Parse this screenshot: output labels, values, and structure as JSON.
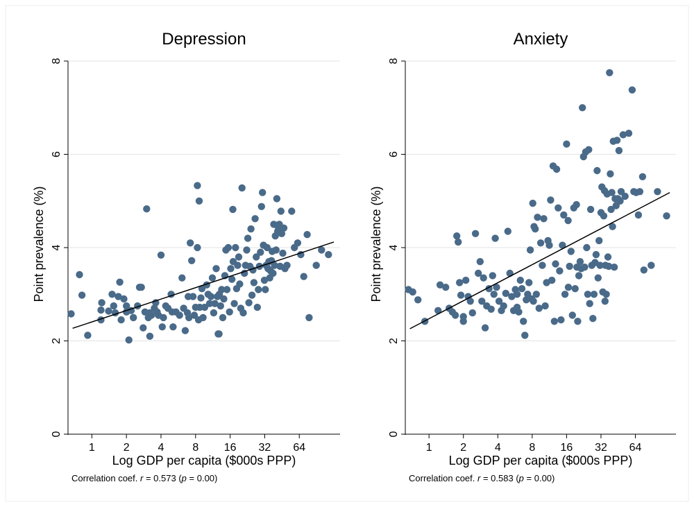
{
  "chart_data": [
    {
      "type": "scatter",
      "title": "Depression",
      "xlabel": "Log GDP per capita ($000s PPP)",
      "ylabel": "Point prevalence (%)",
      "x_scale": "log2",
      "xticks": [
        1,
        2,
        4,
        8,
        16,
        32,
        64
      ],
      "xlim": [
        0.62,
        145
      ],
      "ylim": [
        0,
        8
      ],
      "yticks": [
        0,
        2,
        4,
        6,
        8
      ],
      "grid": true,
      "point_color": "#4a6a89",
      "correlation": {
        "prefix": "Correlation coef.",
        "r_label": "r",
        "r": "0.573",
        "p_label": "p",
        "p": "0.00"
      },
      "fit_line": {
        "x": [
          0.68,
          128
        ],
        "y": [
          2.27,
          4.12
        ]
      },
      "points": [
        [
          0.66,
          2.58
        ],
        [
          0.78,
          3.42
        ],
        [
          0.82,
          2.98
        ],
        [
          0.92,
          2.12
        ],
        [
          1.2,
          2.45
        ],
        [
          1.2,
          2.66
        ],
        [
          1.22,
          2.82
        ],
        [
          1.4,
          2.64
        ],
        [
          1.5,
          3.0
        ],
        [
          1.55,
          2.75
        ],
        [
          1.6,
          2.6
        ],
        [
          1.7,
          2.95
        ],
        [
          1.75,
          3.26
        ],
        [
          1.8,
          2.45
        ],
        [
          1.9,
          2.9
        ],
        [
          2.0,
          2.62
        ],
        [
          2.1,
          2.02
        ],
        [
          2.2,
          2.65
        ],
        [
          2.3,
          2.5
        ],
        [
          2.5,
          2.75
        ],
        [
          2.6,
          3.15
        ],
        [
          2.7,
          3.15
        ],
        [
          2.8,
          2.28
        ],
        [
          2.9,
          2.62
        ],
        [
          3.0,
          4.83
        ],
        [
          3.1,
          2.5
        ],
        [
          3.2,
          2.1
        ],
        [
          3.3,
          2.55
        ],
        [
          3.5,
          2.7
        ],
        [
          3.6,
          2.82
        ],
        [
          3.7,
          2.62
        ],
        [
          3.8,
          2.55
        ],
        [
          4.0,
          3.84
        ],
        [
          4.1,
          2.3
        ],
        [
          4.2,
          2.5
        ],
        [
          4.4,
          2.75
        ],
        [
          4.6,
          2.7
        ],
        [
          4.9,
          3.0
        ],
        [
          5.1,
          2.3
        ],
        [
          5.4,
          2.62
        ],
        [
          5.8,
          2.55
        ],
        [
          6.1,
          3.35
        ],
        [
          6.3,
          2.7
        ],
        [
          6.5,
          2.22
        ],
        [
          6.8,
          2.6
        ],
        [
          7.0,
          2.5
        ],
        [
          7.2,
          4.1
        ],
        [
          7.4,
          3.72
        ],
        [
          7.6,
          2.95
        ],
        [
          7.8,
          2.55
        ],
        [
          8.0,
          2.72
        ],
        [
          8.3,
          4.0
        ],
        [
          8.5,
          2.45
        ],
        [
          8.7,
          2.72
        ],
        [
          8.9,
          2.92
        ],
        [
          9.1,
          3.12
        ],
        [
          9.3,
          2.5
        ],
        [
          9.6,
          2.72
        ],
        [
          10.0,
          3.2
        ],
        [
          10.3,
          3.0
        ],
        [
          10.6,
          2.8
        ],
        [
          10.9,
          2.95
        ],
        [
          11.2,
          3.35
        ],
        [
          11.5,
          2.6
        ],
        [
          11.8,
          2.8
        ],
        [
          12.1,
          3.55
        ],
        [
          12.4,
          2.95
        ],
        [
          12.6,
          2.15
        ],
        [
          12.9,
          3.0
        ],
        [
          13.2,
          2.75
        ],
        [
          13.5,
          3.1
        ],
        [
          13.8,
          2.5
        ],
        [
          14.1,
          2.9
        ],
        [
          14.4,
          3.4
        ],
        [
          14.7,
          3.95
        ],
        [
          15.0,
          3.1
        ],
        [
          15.4,
          4.0
        ],
        [
          15.8,
          2.62
        ],
        [
          16.2,
          3.55
        ],
        [
          16.6,
          3.32
        ],
        [
          17.0,
          3.7
        ],
        [
          17.4,
          2.8
        ],
        [
          17.8,
          4.0
        ],
        [
          18.2,
          3.12
        ],
        [
          18.6,
          3.62
        ],
        [
          19.0,
          3.8
        ],
        [
          19.4,
          3.22
        ],
        [
          19.8,
          2.7
        ],
        [
          20.3,
          5.28
        ],
        [
          20.8,
          2.6
        ],
        [
          21.3,
          3.45
        ],
        [
          21.8,
          3.62
        ],
        [
          22.3,
          3.95
        ],
        [
          22.8,
          4.2
        ],
        [
          23.3,
          2.82
        ],
        [
          23.8,
          3.6
        ],
        [
          24.3,
          4.4
        ],
        [
          24.8,
          2.98
        ],
        [
          25.3,
          3.52
        ],
        [
          25.8,
          3.25
        ],
        [
          26.4,
          4.62
        ],
        [
          27.0,
          3.8
        ],
        [
          27.6,
          2.72
        ],
        [
          28.2,
          3.1
        ],
        [
          28.8,
          3.6
        ],
        [
          29.4,
          3.9
        ],
        [
          30.0,
          4.88
        ],
        [
          30.6,
          5.18
        ],
        [
          31.2,
          4.05
        ],
        [
          31.8,
          3.3
        ],
        [
          32.4,
          3.1
        ],
        [
          33.0,
          3.62
        ],
        [
          33.6,
          4.0
        ],
        [
          34.2,
          3.55
        ],
        [
          34.8,
          3.7
        ],
        [
          35.4,
          3.35
        ],
        [
          36.0,
          3.5
        ],
        [
          36.6,
          3.72
        ],
        [
          37.2,
          3.92
        ],
        [
          37.8,
          3.45
        ],
        [
          38.4,
          4.5
        ],
        [
          39.0,
          3.62
        ],
        [
          39.6,
          4.25
        ],
        [
          40.2,
          3.95
        ],
        [
          40.8,
          5.05
        ],
        [
          41.5,
          4.35
        ],
        [
          42.2,
          4.4
        ],
        [
          42.9,
          4.5
        ],
        [
          43.6,
          3.6
        ],
        [
          44.3,
          4.78
        ],
        [
          45.0,
          4.3
        ],
        [
          46.0,
          3.88
        ],
        [
          47.0,
          4.42
        ],
        [
          48.0,
          3.55
        ],
        [
          50.0,
          3.62
        ],
        [
          55.0,
          4.78
        ],
        [
          58.0,
          4.0
        ],
        [
          62.0,
          4.1
        ],
        [
          66.0,
          3.85
        ],
        [
          70.0,
          3.38
        ],
        [
          75.0,
          4.28
        ],
        [
          78.0,
          2.5
        ],
        [
          90.0,
          3.62
        ],
        [
          100.0,
          3.95
        ],
        [
          115.0,
          3.85
        ],
        [
          8.3,
          5.33
        ],
        [
          8.6,
          5.0
        ],
        [
          16.9,
          4.82
        ],
        [
          2.0,
          2.75
        ],
        [
          3.2,
          2.6
        ],
        [
          5.0,
          2.62
        ],
        [
          6.9,
          2.95
        ],
        [
          12.8,
          2.15
        ]
      ]
    },
    {
      "type": "scatter",
      "title": "Anxiety",
      "xlabel": "Log GDP per capita ($000s PPP)",
      "ylabel": "Point prevalence (%)",
      "x_scale": "log2",
      "xticks": [
        1,
        2,
        4,
        8,
        16,
        32,
        64
      ],
      "xlim": [
        0.62,
        145
      ],
      "ylim": [
        0,
        8
      ],
      "yticks": [
        0,
        2,
        4,
        6,
        8
      ],
      "grid": true,
      "point_color": "#4a6a89",
      "correlation": {
        "prefix": "Correlation coef.",
        "r_label": "r",
        "r": "0.583",
        "p_label": "p",
        "p": "0.00"
      },
      "fit_line": {
        "x": [
          0.68,
          128
        ],
        "y": [
          2.26,
          5.18
        ]
      },
      "points": [
        [
          0.66,
          3.1
        ],
        [
          0.72,
          3.05
        ],
        [
          0.8,
          2.88
        ],
        [
          0.92,
          2.42
        ],
        [
          1.2,
          2.65
        ],
        [
          1.25,
          3.2
        ],
        [
          1.4,
          3.15
        ],
        [
          1.5,
          2.7
        ],
        [
          1.6,
          2.62
        ],
        [
          1.7,
          2.55
        ],
        [
          1.75,
          4.25
        ],
        [
          1.8,
          4.12
        ],
        [
          1.85,
          3.25
        ],
        [
          1.9,
          2.98
        ],
        [
          2.0,
          2.52
        ],
        [
          2.1,
          3.3
        ],
        [
          2.2,
          2.95
        ],
        [
          2.3,
          2.85
        ],
        [
          2.4,
          2.6
        ],
        [
          2.55,
          4.3
        ],
        [
          2.7,
          3.45
        ],
        [
          2.8,
          3.7
        ],
        [
          2.9,
          2.85
        ],
        [
          3.0,
          3.35
        ],
        [
          3.1,
          2.28
        ],
        [
          3.2,
          2.75
        ],
        [
          3.35,
          3.12
        ],
        [
          3.5,
          2.68
        ],
        [
          3.7,
          3.0
        ],
        [
          3.8,
          4.2
        ],
        [
          3.9,
          3.15
        ],
        [
          4.1,
          2.85
        ],
        [
          4.3,
          2.65
        ],
        [
          4.5,
          2.75
        ],
        [
          4.7,
          3.02
        ],
        [
          4.9,
          4.35
        ],
        [
          5.1,
          3.45
        ],
        [
          5.3,
          2.95
        ],
        [
          5.5,
          2.65
        ],
        [
          5.7,
          3.1
        ],
        [
          5.9,
          2.72
        ],
        [
          6.1,
          2.62
        ],
        [
          6.3,
          3.3
        ],
        [
          6.5,
          3.12
        ],
        [
          6.7,
          2.42
        ],
        [
          6.9,
          2.12
        ],
        [
          7.1,
          2.88
        ],
        [
          7.3,
          3.0
        ],
        [
          7.5,
          3.25
        ],
        [
          7.7,
          3.95
        ],
        [
          7.9,
          2.9
        ],
        [
          8.1,
          4.95
        ],
        [
          8.3,
          4.45
        ],
        [
          8.5,
          4.4
        ],
        [
          8.7,
          3.0
        ],
        [
          8.9,
          4.65
        ],
        [
          9.2,
          2.7
        ],
        [
          9.5,
          4.1
        ],
        [
          9.8,
          3.62
        ],
        [
          10.1,
          4.62
        ],
        [
          10.4,
          2.75
        ],
        [
          10.7,
          3.25
        ],
        [
          11.0,
          4.15
        ],
        [
          11.3,
          4.05
        ],
        [
          11.6,
          5.02
        ],
        [
          11.9,
          3.3
        ],
        [
          12.2,
          5.75
        ],
        [
          12.5,
          2.42
        ],
        [
          12.8,
          3.65
        ],
        [
          13.1,
          5.68
        ],
        [
          13.5,
          4.85
        ],
        [
          13.9,
          3.5
        ],
        [
          14.3,
          2.45
        ],
        [
          14.7,
          4.05
        ],
        [
          15.1,
          4.7
        ],
        [
          15.5,
          3.0
        ],
        [
          16.0,
          6.22
        ],
        [
          16.5,
          4.58
        ],
        [
          17.0,
          3.6
        ],
        [
          17.5,
          3.92
        ],
        [
          18.0,
          2.55
        ],
        [
          18.5,
          4.85
        ],
        [
          19.0,
          3.12
        ],
        [
          19.5,
          4.92
        ],
        [
          20.0,
          2.42
        ],
        [
          20.5,
          3.4
        ],
        [
          21.0,
          3.7
        ],
        [
          21.5,
          3.55
        ],
        [
          22.0,
          7.0
        ],
        [
          22.5,
          5.95
        ],
        [
          23.0,
          3.58
        ],
        [
          23.5,
          6.05
        ],
        [
          24.0,
          4.0
        ],
        [
          24.5,
          3.0
        ],
        [
          25.0,
          6.1
        ],
        [
          25.5,
          2.8
        ],
        [
          26.0,
          4.82
        ],
        [
          26.6,
          3.62
        ],
        [
          27.2,
          2.48
        ],
        [
          27.8,
          3.0
        ],
        [
          28.4,
          3.68
        ],
        [
          29.0,
          3.85
        ],
        [
          29.6,
          5.65
        ],
        [
          30.2,
          3.35
        ],
        [
          30.8,
          4.15
        ],
        [
          31.4,
          3.62
        ],
        [
          32.0,
          4.75
        ],
        [
          32.6,
          5.3
        ],
        [
          33.2,
          3.05
        ],
        [
          33.8,
          4.68
        ],
        [
          34.4,
          5.22
        ],
        [
          35.0,
          3.62
        ],
        [
          35.6,
          3.0
        ],
        [
          36.2,
          5.15
        ],
        [
          36.8,
          3.8
        ],
        [
          37.4,
          3.6
        ],
        [
          38.0,
          7.75
        ],
        [
          38.6,
          5.58
        ],
        [
          39.2,
          4.82
        ],
        [
          39.8,
          5.18
        ],
        [
          40.4,
          4.45
        ],
        [
          41.0,
          6.28
        ],
        [
          41.8,
          3.58
        ],
        [
          42.6,
          5.05
        ],
        [
          43.4,
          4.9
        ],
        [
          44.2,
          6.3
        ],
        [
          45.0,
          5.05
        ],
        [
          46.0,
          6.08
        ],
        [
          47.0,
          5.0
        ],
        [
          48.0,
          5.2
        ],
        [
          50.0,
          6.42
        ],
        [
          52.0,
          5.1
        ],
        [
          56.0,
          6.45
        ],
        [
          60.0,
          7.38
        ],
        [
          62.0,
          5.2
        ],
        [
          65.0,
          5.18
        ],
        [
          68.0,
          4.7
        ],
        [
          70.0,
          5.2
        ],
        [
          74.0,
          5.52
        ],
        [
          76.0,
          3.52
        ],
        [
          88.0,
          3.62
        ],
        [
          100.0,
          5.2
        ],
        [
          120.0,
          4.68
        ],
        [
          2.0,
          2.42
        ],
        [
          3.6,
          3.4
        ],
        [
          5.9,
          3.0
        ],
        [
          8.2,
          2.85
        ],
        [
          16.6,
          3.15
        ],
        [
          19.7,
          3.58
        ],
        [
          34.7,
          2.85
        ]
      ]
    }
  ]
}
